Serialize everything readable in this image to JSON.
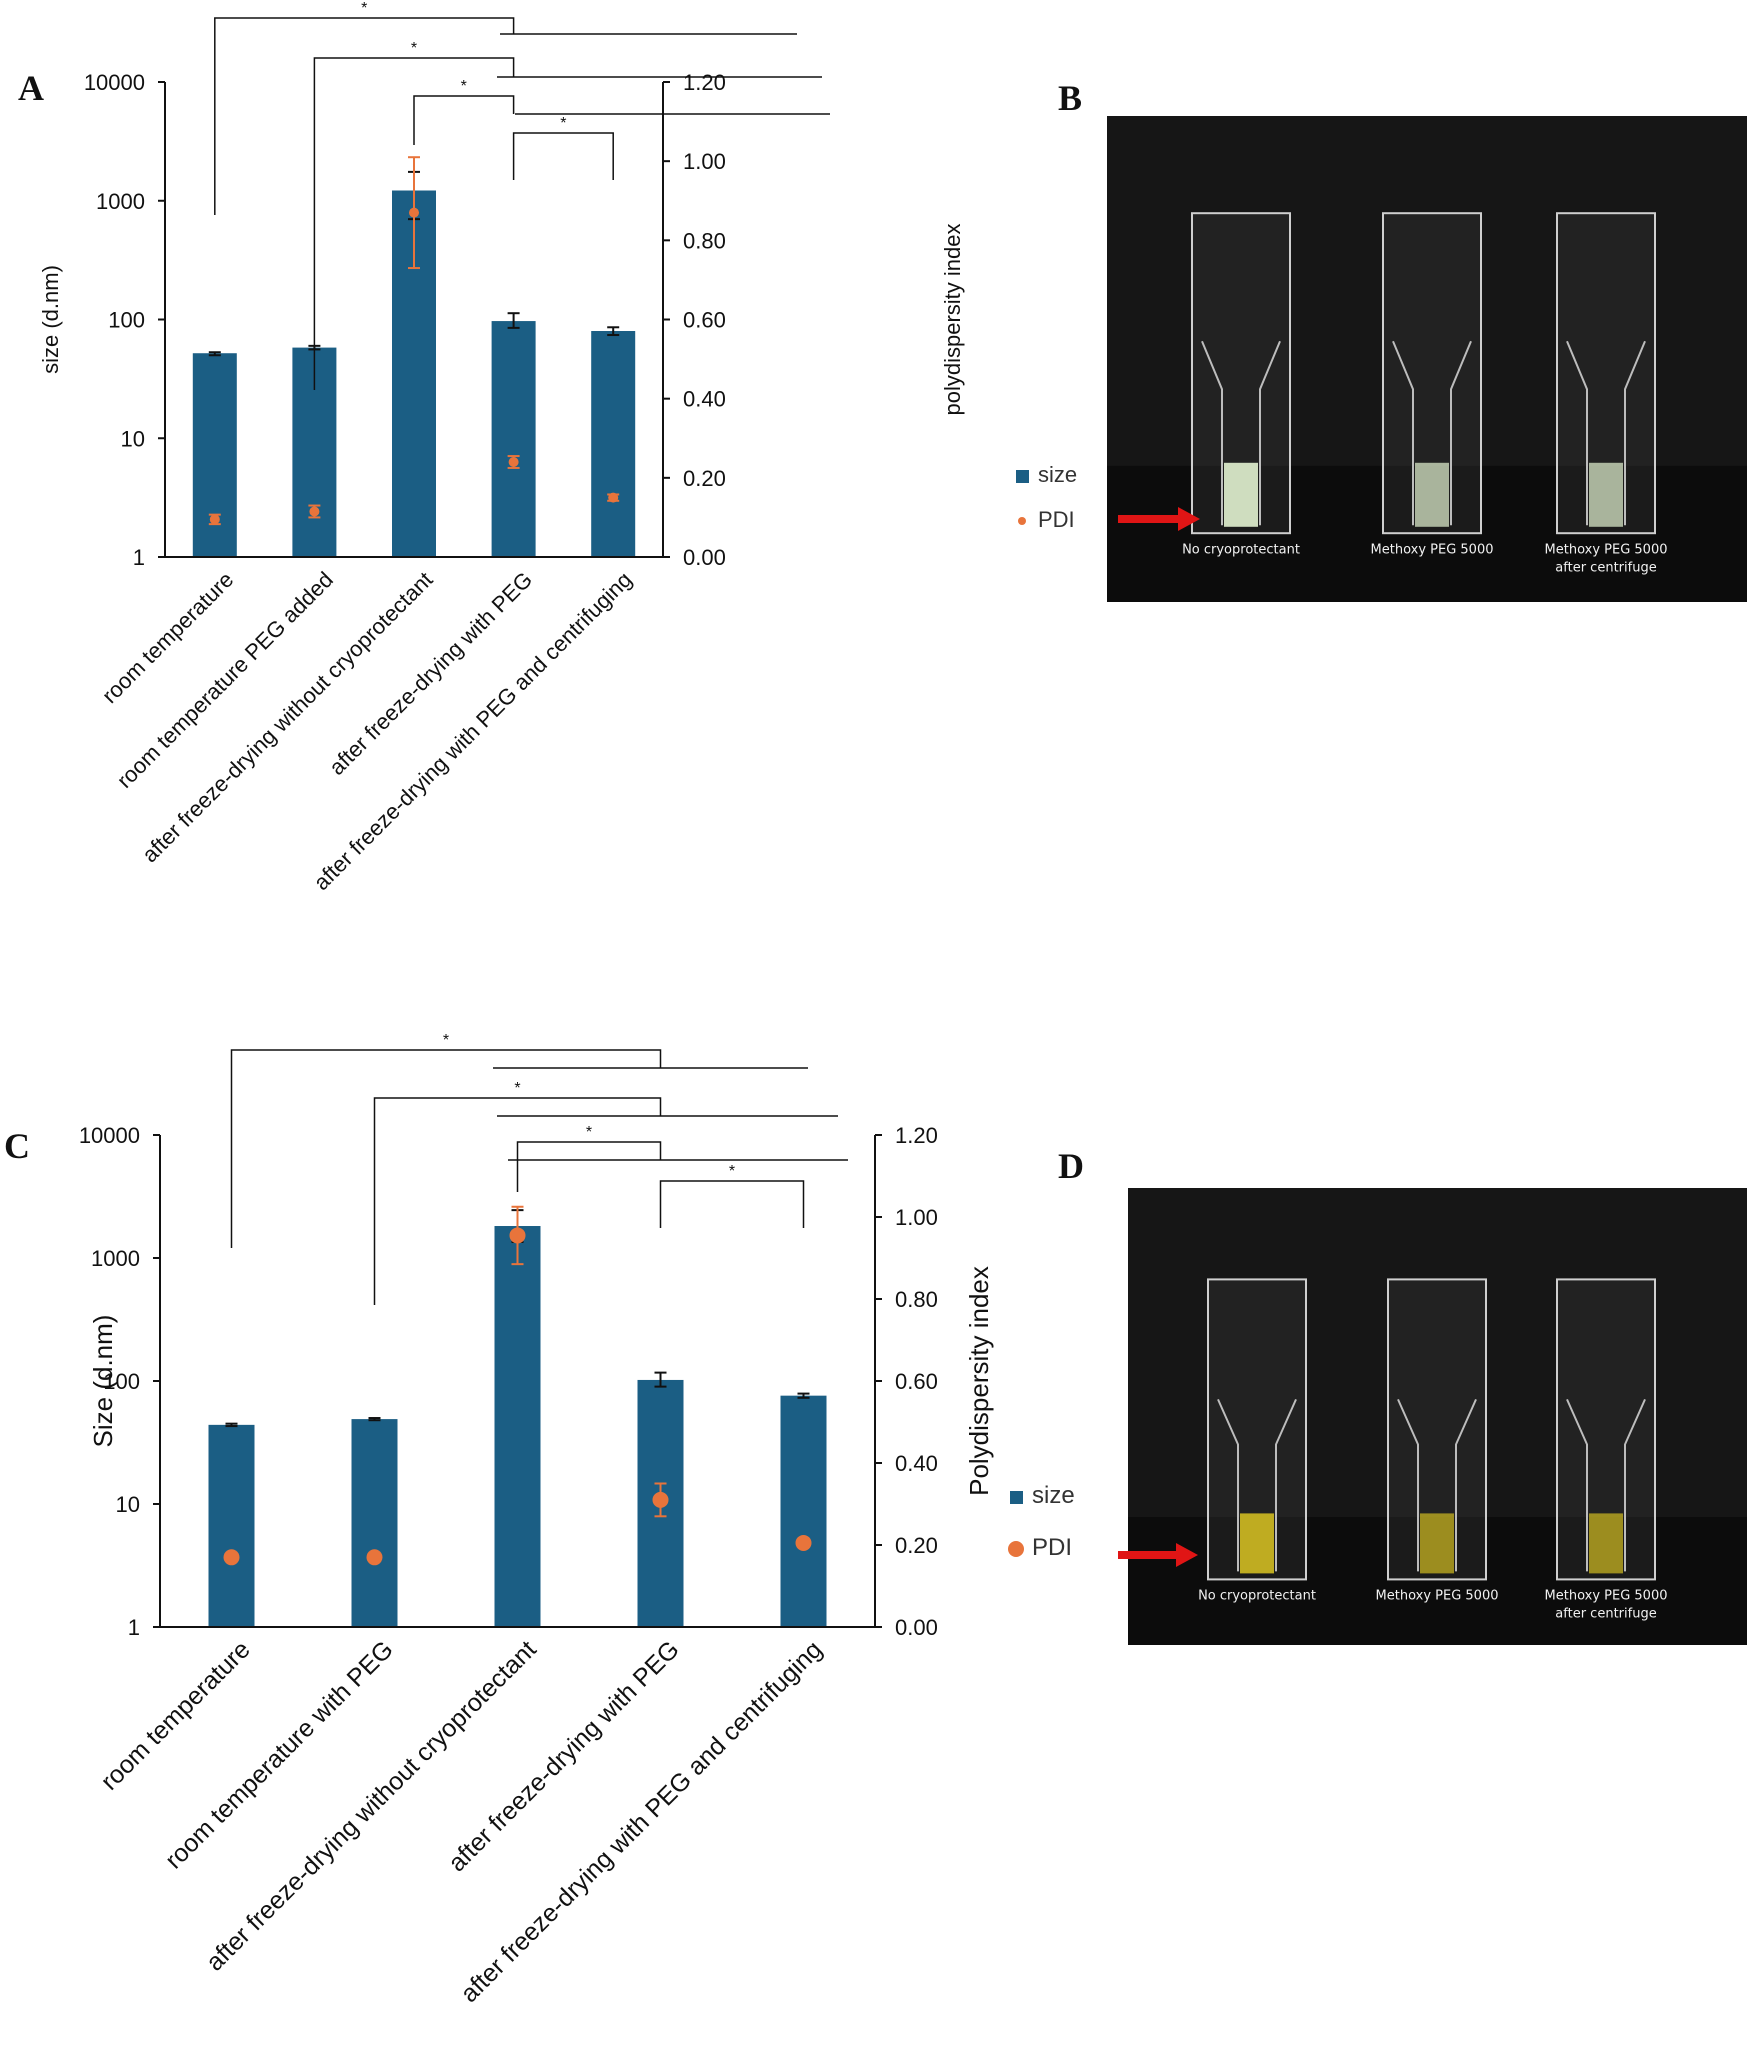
{
  "panel_letters": [
    "A",
    "B",
    "C",
    "D"
  ],
  "colors": {
    "size_bar": "#1b5e84",
    "pdi_point": "#e8743b",
    "photo_bg": "#161616"
  },
  "chart_data": [
    {
      "panel": "A",
      "type": "bar",
      "categories": [
        "room temperature",
        "room temperature PEG added",
        "after freeze-drying without cryoprotectant",
        "after freeze-drying with PEG",
        "after freeze-drying with PEG and centrifuging"
      ],
      "yscale": "log",
      "ylim": [
        1,
        10000
      ],
      "y_ticks": [
        "1",
        "10",
        "100",
        "1000",
        "10000"
      ],
      "y2lim": [
        0,
        1.2
      ],
      "y2_ticks": [
        "0.00",
        "0.20",
        "0.40",
        "0.60",
        "0.80",
        "1.00",
        "1.20"
      ],
      "ylabel": "size (d.nm)",
      "y2label": "polydispersity index",
      "legend_position": "right",
      "series": [
        {
          "name": "size",
          "kind": "bar",
          "axis": "left",
          "values": [
            52,
            58,
            1220,
            97,
            80
          ],
          "err_low": [
            50,
            56,
            700,
            85,
            74
          ],
          "err_high": [
            53,
            60,
            1750,
            113,
            86
          ]
        },
        {
          "name": "PDI",
          "kind": "point",
          "axis": "right",
          "values": [
            0.095,
            0.115,
            0.87,
            0.24,
            0.15
          ],
          "err": [
            0.012,
            0.015,
            0.14,
            0.015,
            0.008
          ]
        }
      ],
      "significance": [
        {
          "from": 0,
          "to": 3,
          "label": "*"
        },
        {
          "from": 1,
          "to": 3,
          "label": "*"
        },
        {
          "from": 2,
          "to": 3,
          "label": "*"
        },
        {
          "from": 3,
          "to": 4,
          "label": "*"
        }
      ]
    },
    {
      "panel": "C",
      "type": "bar",
      "categories": [
        "room temperature",
        "room temperature with PEG",
        "after freeze-drying without cryoprotectant",
        "after freeze-drying with PEG",
        "after freeze-drying with PEG and centrifuging"
      ],
      "yscale": "log",
      "ylim": [
        1,
        10000
      ],
      "y_ticks": [
        "1",
        "10",
        "100",
        "1000",
        "10000"
      ],
      "y2lim": [
        0,
        1.2
      ],
      "y2_ticks": [
        "0.00",
        "0.20",
        "0.40",
        "0.60",
        "0.80",
        "1.00",
        "1.20"
      ],
      "ylabel": "Size (d.nm)",
      "y2label": "Polydispersity index",
      "legend_position": "right",
      "series": [
        {
          "name": "size",
          "kind": "bar",
          "axis": "left",
          "values": [
            44,
            49,
            1820,
            102,
            76
          ],
          "err_low": [
            43,
            48,
            1350,
            90,
            73
          ],
          "err_high": [
            45,
            50,
            2450,
            117,
            79
          ]
        },
        {
          "name": "PDI",
          "kind": "point",
          "axis": "right",
          "values": [
            0.17,
            0.17,
            0.955,
            0.31,
            0.205
          ],
          "err": [
            0.008,
            0.008,
            0.07,
            0.04,
            0.008
          ]
        }
      ],
      "significance": [
        {
          "from": 0,
          "to": 3,
          "label": "*"
        },
        {
          "from": 1,
          "to": 3,
          "label": "*"
        },
        {
          "from": 2,
          "to": 3,
          "label": "*"
        },
        {
          "from": 3,
          "to": 4,
          "label": "*"
        }
      ]
    }
  ],
  "photos": [
    {
      "panel": "B",
      "tint": "#d9e8c8",
      "captions": [
        [
          "No cryoprotectant"
        ],
        [
          "Methoxy PEG 5000"
        ],
        [
          "Methoxy PEG 5000",
          "after centrifuge"
        ]
      ]
    },
    {
      "panel": "D",
      "tint": "#c8b422",
      "captions": [
        [
          "No cryoprotectant"
        ],
        [
          "Methoxy PEG 5000"
        ],
        [
          "Methoxy PEG 5000",
          "after centrifuge"
        ]
      ]
    }
  ]
}
